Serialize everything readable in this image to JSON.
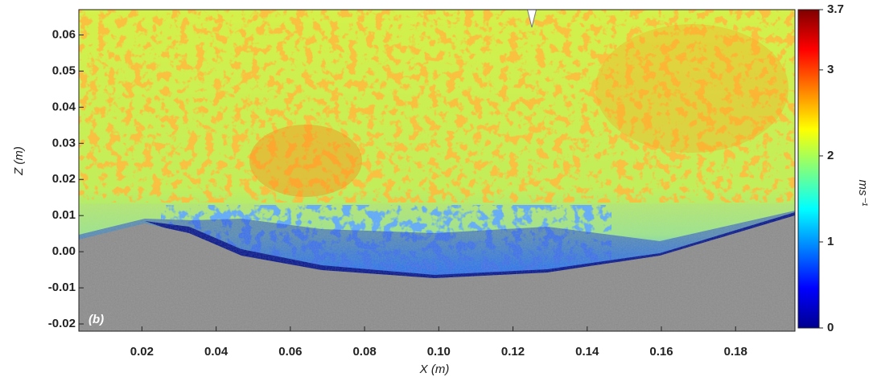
{
  "chart_data": {
    "type": "heatmap",
    "panel_label": "(b)",
    "x_label": "X (m)",
    "y_label": "Z (m)",
    "xlim": [
      0.003,
      0.196
    ],
    "xticks": [
      0.02,
      0.04,
      0.06,
      0.08,
      {
        "value": 0.1,
        "label": "0.10"
      },
      0.12,
      0.14,
      0.16,
      0.18
    ],
    "ylim": [
      -0.022,
      0.067
    ],
    "yticks": [
      -0.02,
      -0.01,
      {
        "value": 0,
        "label": "0.00"
      },
      0.01,
      0.02,
      0.03,
      0.04,
      0.05,
      0.06
    ],
    "colorbar": {
      "label": "ms⁻¹",
      "clim": [
        0,
        3.7
      ],
      "ticks": [
        0,
        1,
        2,
        3,
        3.7
      ]
    }
  }
}
